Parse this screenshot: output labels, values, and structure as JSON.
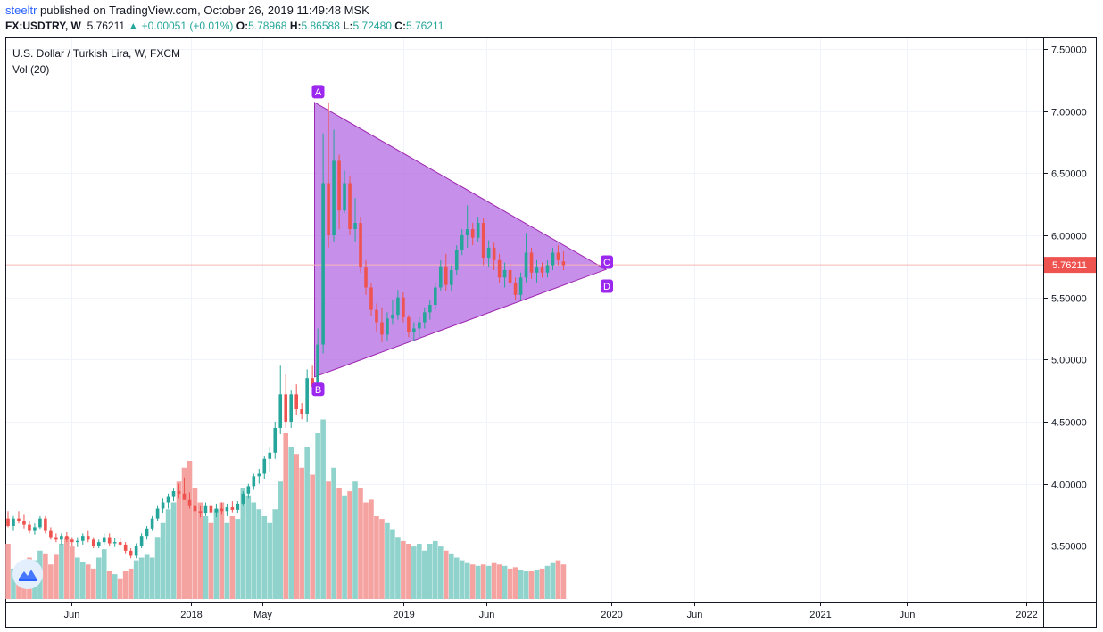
{
  "header": {
    "username": "steeltr",
    "published": "published on TradingView.com, October 26, 2019 11:49:48 MSK",
    "symbol": "FX:USDTRY, W",
    "last_price": "5.76211",
    "change": "+0.00051 (+0.01%)",
    "open_label": "O:",
    "open": "5.78968",
    "high_label": "H:",
    "high": "5.86588",
    "low_label": "L:",
    "low": "5.72480",
    "close_label": "C:",
    "close": "5.76211"
  },
  "legend": {
    "title": "U.S. Dollar / Turkish Lira, W, FXCM",
    "volume": "Vol (20)"
  },
  "colors": {
    "up": "#26a69a",
    "down": "#ef5350",
    "vol_up": "#8fd3cc",
    "vol_down": "#f5a3a1",
    "triangle_fill": "#b36ae2",
    "triangle_stroke": "#9c27b0",
    "label_bg": "#9c27ef",
    "price_line": "#f8b6b4",
    "price_tag": "#ef5350",
    "grid": "#f0f3fa"
  },
  "icons": {
    "watermark": "tradingview-logo-icon"
  },
  "chart_data": {
    "type": "candlestick",
    "title": "U.S. Dollar / Turkish Lira, W, FXCM",
    "ylim": [
      3.05,
      7.55
    ],
    "y_ticks": [
      "7.50000",
      "7.00000",
      "6.50000",
      "6.00000",
      "5.50000",
      "5.00000",
      "4.50000",
      "4.00000",
      "3.50000"
    ],
    "x_ticks": [
      "Jun",
      "2018",
      "May",
      "2019",
      "Jun",
      "2020",
      "Jun",
      "2021",
      "Jun",
      "2022"
    ],
    "last_price_label": "5.76211",
    "pattern": {
      "type": "triangle",
      "labels": [
        "A",
        "B",
        "C",
        "D"
      ],
      "points": [
        {
          "label": "A",
          "date": "2018-08-13",
          "price": 7.07
        },
        {
          "label": "B",
          "date": "2018-08-13",
          "price": 4.86
        },
        {
          "label": "C",
          "date": "2019-12-30",
          "price": 5.77
        },
        {
          "label": "D",
          "date": "2019-12-30",
          "price": 5.68
        }
      ]
    },
    "candles": [
      {
        "o": 3.72,
        "h": 3.78,
        "l": 3.65,
        "c": 3.66
      },
      {
        "o": 3.66,
        "h": 3.74,
        "l": 3.62,
        "c": 3.72
      },
      {
        "o": 3.72,
        "h": 3.78,
        "l": 3.68,
        "c": 3.7
      },
      {
        "o": 3.7,
        "h": 3.75,
        "l": 3.64,
        "c": 3.67
      },
      {
        "o": 3.67,
        "h": 3.7,
        "l": 3.6,
        "c": 3.62
      },
      {
        "o": 3.62,
        "h": 3.68,
        "l": 3.59,
        "c": 3.65
      },
      {
        "o": 3.65,
        "h": 3.74,
        "l": 3.63,
        "c": 3.72
      },
      {
        "o": 3.72,
        "h": 3.74,
        "l": 3.6,
        "c": 3.62
      },
      {
        "o": 3.62,
        "h": 3.65,
        "l": 3.55,
        "c": 3.57
      },
      {
        "o": 3.57,
        "h": 3.6,
        "l": 3.53,
        "c": 3.55
      },
      {
        "o": 3.55,
        "h": 3.6,
        "l": 3.51,
        "c": 3.58
      },
      {
        "o": 3.58,
        "h": 3.61,
        "l": 3.53,
        "c": 3.55
      },
      {
        "o": 3.55,
        "h": 3.57,
        "l": 3.5,
        "c": 3.53
      },
      {
        "o": 3.53,
        "h": 3.57,
        "l": 3.49,
        "c": 3.54
      },
      {
        "o": 3.54,
        "h": 3.6,
        "l": 3.51,
        "c": 3.58
      },
      {
        "o": 3.58,
        "h": 3.62,
        "l": 3.53,
        "c": 3.55
      },
      {
        "o": 3.55,
        "h": 3.57,
        "l": 3.48,
        "c": 3.5
      },
      {
        "o": 3.5,
        "h": 3.55,
        "l": 3.48,
        "c": 3.53
      },
      {
        "o": 3.53,
        "h": 3.6,
        "l": 3.51,
        "c": 3.57
      },
      {
        "o": 3.57,
        "h": 3.6,
        "l": 3.5,
        "c": 3.52
      },
      {
        "o": 3.52,
        "h": 3.56,
        "l": 3.49,
        "c": 3.53
      },
      {
        "o": 3.53,
        "h": 3.56,
        "l": 3.5,
        "c": 3.51
      },
      {
        "o": 3.51,
        "h": 3.53,
        "l": 3.44,
        "c": 3.46
      },
      {
        "o": 3.46,
        "h": 3.48,
        "l": 3.4,
        "c": 3.42
      },
      {
        "o": 3.42,
        "h": 3.52,
        "l": 3.4,
        "c": 3.5
      },
      {
        "o": 3.5,
        "h": 3.6,
        "l": 3.48,
        "c": 3.58
      },
      {
        "o": 3.58,
        "h": 3.66,
        "l": 3.55,
        "c": 3.64
      },
      {
        "o": 3.64,
        "h": 3.74,
        "l": 3.62,
        "c": 3.72
      },
      {
        "o": 3.72,
        "h": 3.82,
        "l": 3.7,
        "c": 3.8
      },
      {
        "o": 3.8,
        "h": 3.88,
        "l": 3.76,
        "c": 3.85
      },
      {
        "o": 3.85,
        "h": 3.92,
        "l": 3.8,
        "c": 3.9
      },
      {
        "o": 3.9,
        "h": 3.96,
        "l": 3.86,
        "c": 3.94
      },
      {
        "o": 3.94,
        "h": 4.0,
        "l": 3.88,
        "c": 3.92
      },
      {
        "o": 3.92,
        "h": 4.05,
        "l": 3.88,
        "c": 3.87
      },
      {
        "o": 3.87,
        "h": 3.93,
        "l": 3.8,
        "c": 3.82
      },
      {
        "o": 3.82,
        "h": 3.86,
        "l": 3.76,
        "c": 3.78
      },
      {
        "o": 3.78,
        "h": 3.82,
        "l": 3.73,
        "c": 3.76
      },
      {
        "o": 3.76,
        "h": 3.85,
        "l": 3.74,
        "c": 3.82
      },
      {
        "o": 3.82,
        "h": 3.86,
        "l": 3.74,
        "c": 3.77
      },
      {
        "o": 3.77,
        "h": 3.84,
        "l": 3.73,
        "c": 3.8
      },
      {
        "o": 3.8,
        "h": 3.85,
        "l": 3.75,
        "c": 3.78
      },
      {
        "o": 3.78,
        "h": 3.84,
        "l": 3.74,
        "c": 3.81
      },
      {
        "o": 3.81,
        "h": 3.86,
        "l": 3.77,
        "c": 3.79
      },
      {
        "o": 3.79,
        "h": 3.86,
        "l": 3.76,
        "c": 3.84
      },
      {
        "o": 3.84,
        "h": 3.94,
        "l": 3.82,
        "c": 3.92
      },
      {
        "o": 3.92,
        "h": 4.0,
        "l": 3.88,
        "c": 3.98
      },
      {
        "o": 3.98,
        "h": 4.08,
        "l": 3.95,
        "c": 4.06
      },
      {
        "o": 4.06,
        "h": 4.12,
        "l": 4.0,
        "c": 4.08
      },
      {
        "o": 4.08,
        "h": 4.22,
        "l": 4.04,
        "c": 4.2
      },
      {
        "o": 4.2,
        "h": 4.3,
        "l": 4.1,
        "c": 4.25
      },
      {
        "o": 4.25,
        "h": 4.5,
        "l": 4.2,
        "c": 4.45
      },
      {
        "o": 4.45,
        "h": 4.95,
        "l": 4.4,
        "c": 4.72
      },
      {
        "o": 4.72,
        "h": 4.88,
        "l": 4.45,
        "c": 4.5
      },
      {
        "o": 4.5,
        "h": 4.75,
        "l": 4.45,
        "c": 4.72
      },
      {
        "o": 4.72,
        "h": 4.8,
        "l": 4.55,
        "c": 4.6
      },
      {
        "o": 4.6,
        "h": 4.65,
        "l": 4.52,
        "c": 4.56
      },
      {
        "o": 4.56,
        "h": 4.92,
        "l": 4.5,
        "c": 4.85
      },
      {
        "o": 4.85,
        "h": 4.95,
        "l": 4.72,
        "c": 4.78
      },
      {
        "o": 4.78,
        "h": 5.25,
        "l": 4.74,
        "c": 5.12
      },
      {
        "o": 5.12,
        "h": 6.82,
        "l": 5.05,
        "c": 6.42
      },
      {
        "o": 6.42,
        "h": 7.07,
        "l": 5.9,
        "c": 6.0
      },
      {
        "o": 6.0,
        "h": 6.85,
        "l": 5.95,
        "c": 6.6
      },
      {
        "o": 6.6,
        "h": 6.65,
        "l": 6.05,
        "c": 6.2
      },
      {
        "o": 6.2,
        "h": 6.52,
        "l": 6.18,
        "c": 6.42
      },
      {
        "o": 6.42,
        "h": 6.48,
        "l": 6.0,
        "c": 6.05
      },
      {
        "o": 6.05,
        "h": 6.3,
        "l": 5.95,
        "c": 6.1
      },
      {
        "o": 6.1,
        "h": 6.15,
        "l": 5.7,
        "c": 5.74
      },
      {
        "o": 5.74,
        "h": 5.8,
        "l": 5.52,
        "c": 5.58
      },
      {
        "o": 5.58,
        "h": 5.62,
        "l": 5.35,
        "c": 5.4
      },
      {
        "o": 5.4,
        "h": 5.45,
        "l": 5.22,
        "c": 5.3
      },
      {
        "o": 5.3,
        "h": 5.42,
        "l": 5.14,
        "c": 5.2
      },
      {
        "o": 5.2,
        "h": 5.38,
        "l": 5.15,
        "c": 5.33
      },
      {
        "o": 5.33,
        "h": 5.48,
        "l": 5.28,
        "c": 5.36
      },
      {
        "o": 5.36,
        "h": 5.56,
        "l": 5.32,
        "c": 5.5
      },
      {
        "o": 5.5,
        "h": 5.54,
        "l": 5.3,
        "c": 5.34
      },
      {
        "o": 5.34,
        "h": 5.36,
        "l": 5.18,
        "c": 5.22
      },
      {
        "o": 5.22,
        "h": 5.3,
        "l": 5.15,
        "c": 5.25
      },
      {
        "o": 5.25,
        "h": 5.34,
        "l": 5.18,
        "c": 5.3
      },
      {
        "o": 5.3,
        "h": 5.42,
        "l": 5.25,
        "c": 5.38
      },
      {
        "o": 5.38,
        "h": 5.48,
        "l": 5.32,
        "c": 5.44
      },
      {
        "o": 5.44,
        "h": 5.62,
        "l": 5.4,
        "c": 5.58
      },
      {
        "o": 5.58,
        "h": 5.8,
        "l": 5.55,
        "c": 5.75
      },
      {
        "o": 5.75,
        "h": 5.85,
        "l": 5.55,
        "c": 5.6
      },
      {
        "o": 5.6,
        "h": 5.76,
        "l": 5.55,
        "c": 5.72
      },
      {
        "o": 5.72,
        "h": 5.92,
        "l": 5.68,
        "c": 5.88
      },
      {
        "o": 5.88,
        "h": 6.05,
        "l": 5.84,
        "c": 6.0
      },
      {
        "o": 6.0,
        "h": 6.24,
        "l": 5.9,
        "c": 6.05
      },
      {
        "o": 6.05,
        "h": 6.1,
        "l": 5.92,
        "c": 5.98
      },
      {
        "o": 5.98,
        "h": 6.15,
        "l": 5.95,
        "c": 6.1
      },
      {
        "o": 6.1,
        "h": 6.14,
        "l": 5.76,
        "c": 5.82
      },
      {
        "o": 5.82,
        "h": 5.96,
        "l": 5.74,
        "c": 5.9
      },
      {
        "o": 5.9,
        "h": 5.94,
        "l": 5.72,
        "c": 5.8
      },
      {
        "o": 5.8,
        "h": 5.85,
        "l": 5.62,
        "c": 5.66
      },
      {
        "o": 5.66,
        "h": 5.78,
        "l": 5.58,
        "c": 5.72
      },
      {
        "o": 5.72,
        "h": 5.78,
        "l": 5.58,
        "c": 5.62
      },
      {
        "o": 5.62,
        "h": 5.66,
        "l": 5.48,
        "c": 5.52
      },
      {
        "o": 5.52,
        "h": 5.7,
        "l": 5.48,
        "c": 5.66
      },
      {
        "o": 5.66,
        "h": 6.02,
        "l": 5.62,
        "c": 5.86
      },
      {
        "o": 5.86,
        "h": 5.9,
        "l": 5.65,
        "c": 5.7
      },
      {
        "o": 5.7,
        "h": 5.8,
        "l": 5.62,
        "c": 5.74
      },
      {
        "o": 5.74,
        "h": 5.78,
        "l": 5.66,
        "c": 5.7
      },
      {
        "o": 5.7,
        "h": 5.8,
        "l": 5.66,
        "c": 5.76
      },
      {
        "o": 5.76,
        "h": 5.9,
        "l": 5.72,
        "c": 5.86
      },
      {
        "o": 5.86,
        "h": 5.92,
        "l": 5.76,
        "c": 5.8
      },
      {
        "o": 5.79,
        "h": 5.87,
        "l": 5.72,
        "c": 5.76
      }
    ],
    "volume": [
      0.4,
      0.22,
      0.18,
      0.25,
      0.3,
      0.28,
      0.35,
      0.33,
      0.25,
      0.32,
      0.4,
      0.45,
      0.38,
      0.3,
      0.27,
      0.25,
      0.22,
      0.3,
      0.36,
      0.2,
      0.18,
      0.15,
      0.2,
      0.22,
      0.28,
      0.3,
      0.32,
      0.3,
      0.45,
      0.55,
      0.65,
      0.7,
      0.85,
      0.95,
      1.0,
      0.8,
      0.7,
      0.6,
      0.55,
      0.65,
      0.7,
      0.55,
      0.6,
      0.58,
      0.8,
      0.75,
      0.7,
      0.65,
      0.6,
      0.55,
      0.65,
      0.85,
      1.2,
      1.1,
      1.05,
      0.95,
      1.1,
      0.9,
      1.2,
      1.3,
      0.85,
      0.95,
      0.8,
      0.75,
      0.78,
      0.85,
      0.8,
      0.7,
      0.72,
      0.6,
      0.58,
      0.55,
      0.5,
      0.45,
      0.42,
      0.4,
      0.38,
      0.4,
      0.35,
      0.4,
      0.42,
      0.38,
      0.35,
      0.33,
      0.3,
      0.28,
      0.26,
      0.25,
      0.24,
      0.25,
      0.24,
      0.26,
      0.25,
      0.24,
      0.22,
      0.23,
      0.21,
      0.2,
      0.2,
      0.21,
      0.22,
      0.24,
      0.26,
      0.28,
      0.25
    ]
  }
}
